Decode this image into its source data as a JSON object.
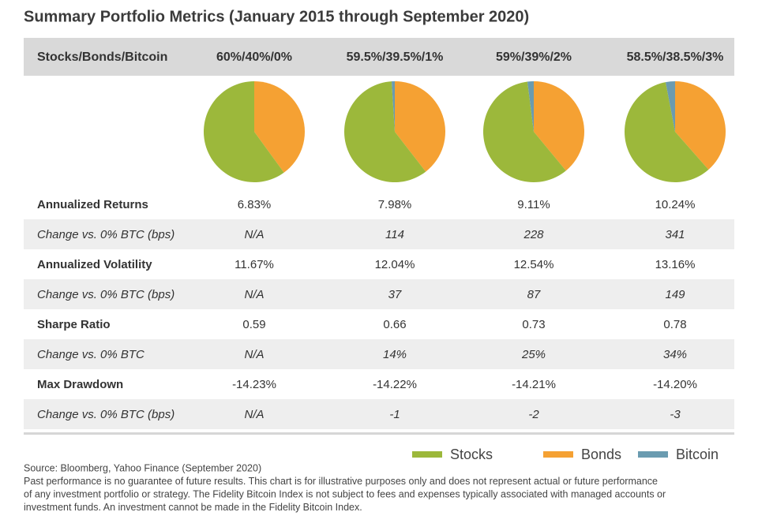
{
  "title": "Summary Portfolio Metrics (January 2015 through September 2020)",
  "table": {
    "header_label": "Stocks/Bonds/Bitcoin",
    "rows": [
      [
        "Annualized Returns",
        "6.83%",
        "7.98%",
        "9.11%",
        "10.24%"
      ],
      [
        "Change vs. 0% BTC (bps)",
        "N/A",
        "114",
        "228",
        "341"
      ],
      [
        "Annualized Volatility",
        "11.67%",
        "12.04%",
        "12.54%",
        "13.16%"
      ],
      [
        "Change vs. 0% BTC (bps)",
        "N/A",
        "37",
        "87",
        "149"
      ],
      [
        "Sharpe Ratio",
        "0.59",
        "0.66",
        "0.73",
        "0.78"
      ],
      [
        "Change vs. 0% BTC",
        "N/A",
        "14%",
        "25%",
        "34%"
      ],
      [
        "Max Drawdown",
        "-14.23%",
        "-14.22%",
        "-14.21%",
        "-14.20%"
      ],
      [
        "Change vs. 0% BTC (bps)",
        "N/A",
        "-1",
        "-2",
        "-3"
      ]
    ]
  },
  "chart_data": [
    {
      "type": "pie",
      "title": "60%/40%/0%",
      "categories": [
        "Stocks",
        "Bonds",
        "Bitcoin"
      ],
      "values": [
        60,
        40,
        0
      ],
      "colors": [
        "#9cb83b",
        "#f5a133",
        "#6a9bb0"
      ]
    },
    {
      "type": "pie",
      "title": "59.5%/39.5%/1%",
      "categories": [
        "Stocks",
        "Bonds",
        "Bitcoin"
      ],
      "values": [
        59.5,
        39.5,
        1
      ],
      "colors": [
        "#9cb83b",
        "#f5a133",
        "#6a9bb0"
      ]
    },
    {
      "type": "pie",
      "title": "59%/39%/2%",
      "categories": [
        "Stocks",
        "Bonds",
        "Bitcoin"
      ],
      "values": [
        59,
        39,
        2
      ],
      "colors": [
        "#9cb83b",
        "#f5a133",
        "#6a9bb0"
      ]
    },
    {
      "type": "pie",
      "title": "58.5%/38.5%/3%",
      "categories": [
        "Stocks",
        "Bonds",
        "Bitcoin"
      ],
      "values": [
        58.5,
        38.5,
        3
      ],
      "colors": [
        "#9cb83b",
        "#f5a133",
        "#6a9bb0"
      ]
    }
  ],
  "footnote": [
    "Source: Bloomberg, Yahoo Finance (September 2020)",
    "Past performance is no guarantee of future results. This chart is for illustrative purposes only and does not represent actual or future performance",
    "of any investment portfolio or strategy. The Fidelity Bitcoin Index is not subject to fees and expenses typically associated with managed accounts or",
    "investment funds. An investment cannot be made in the Fidelity Bitcoin Index."
  ]
}
